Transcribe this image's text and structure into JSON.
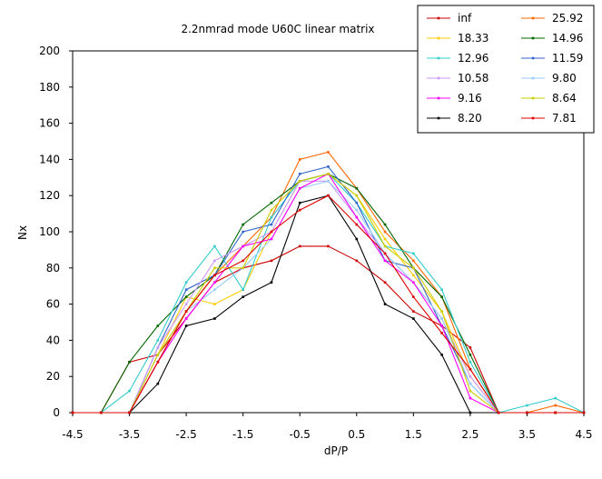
{
  "chart_data": {
    "type": "line",
    "title": "2.2nmrad mode U60C linear matrix",
    "xlabel": "dP/P",
    "ylabel": "Nx",
    "xlim": [
      -4.5,
      4.5
    ],
    "ylim": [
      0,
      200
    ],
    "x_ticks": [
      "-4.5",
      "-3.5",
      "-2.5",
      "-1.5",
      "-0.5",
      "0.5",
      "1.5",
      "2.5",
      "3.5",
      "4.5"
    ],
    "y_ticks": [
      "0",
      "20",
      "40",
      "60",
      "80",
      "100",
      "120",
      "140",
      "160",
      "180",
      "200"
    ],
    "grid": false,
    "legend_position": "top-right",
    "x": [
      -4.5,
      -4,
      -3.5,
      -3,
      -2.5,
      -2,
      -1.5,
      -1,
      -0.5,
      0,
      0.5,
      1,
      1.5,
      2,
      2.5,
      3,
      3.5,
      4,
      4.5
    ],
    "series": [
      {
        "name": "inf",
        "color": "#cc0000",
        "values": [
          0,
          0,
          28,
          32,
          52,
          72,
          80,
          84,
          92,
          92,
          84,
          72,
          56,
          48,
          36,
          0,
          0,
          0,
          0
        ]
      },
      {
        "name": "25.92",
        "color": "#ff6600",
        "values": [
          0,
          0,
          0,
          28,
          56,
          76,
          92,
          108,
          140,
          144,
          124,
          100,
          84,
          64,
          24,
          0,
          0,
          4,
          0
        ]
      },
      {
        "name": "18.33",
        "color": "#ffcc00",
        "values": [
          0,
          0,
          0,
          32,
          64,
          60,
          68,
          100,
          128,
          132,
          120,
          96,
          76,
          56,
          20,
          0,
          0,
          0,
          0
        ]
      },
      {
        "name": "14.96",
        "color": "#006600",
        "values": [
          0,
          0,
          28,
          48,
          64,
          76,
          104,
          116,
          128,
          132,
          124,
          104,
          80,
          64,
          32,
          0,
          0,
          0,
          0
        ]
      },
      {
        "name": "12.96",
        "color": "#33cccc",
        "values": [
          0,
          0,
          12,
          40,
          72,
          92,
          68,
          108,
          128,
          132,
          116,
          92,
          88,
          68,
          28,
          0,
          4,
          8,
          0
        ]
      },
      {
        "name": "11.59",
        "color": "#3366cc",
        "values": [
          0,
          0,
          0,
          36,
          68,
          76,
          100,
          104,
          132,
          136,
          116,
          84,
          80,
          48,
          16,
          0,
          0,
          0,
          0
        ]
      },
      {
        "name": "10.58",
        "color": "#cc99ff",
        "values": [
          0,
          0,
          0,
          36,
          60,
          84,
          92,
          100,
          128,
          128,
          108,
          88,
          72,
          52,
          20,
          0,
          0,
          0,
          0
        ]
      },
      {
        "name": "9.80",
        "color": "#99ccff",
        "values": [
          0,
          0,
          0,
          32,
          56,
          68,
          80,
          96,
          124,
          128,
          112,
          88,
          72,
          52,
          16,
          0,
          0,
          0,
          0
        ]
      },
      {
        "name": "9.16",
        "color": "#ff00ff",
        "values": [
          0,
          0,
          0,
          28,
          52,
          72,
          92,
          96,
          124,
          132,
          108,
          84,
          72,
          48,
          8,
          0,
          0,
          0,
          0
        ]
      },
      {
        "name": "8.64",
        "color": "#cccc00",
        "values": [
          0,
          0,
          0,
          32,
          56,
          80,
          80,
          112,
          128,
          132,
          120,
          92,
          80,
          56,
          12,
          0,
          0,
          0,
          0
        ]
      },
      {
        "name": "8.20",
        "color": "#000000",
        "values": [
          0,
          0,
          0,
          16,
          48,
          52,
          64,
          72,
          116,
          120,
          96,
          60,
          52,
          32,
          0,
          0,
          0,
          0,
          0
        ]
      },
      {
        "name": "7.81",
        "color": "#dd0000",
        "values": [
          0,
          0,
          0,
          28,
          56,
          76,
          84,
          100,
          112,
          120,
          104,
          88,
          64,
          44,
          24,
          0,
          0,
          0,
          0
        ]
      }
    ]
  }
}
